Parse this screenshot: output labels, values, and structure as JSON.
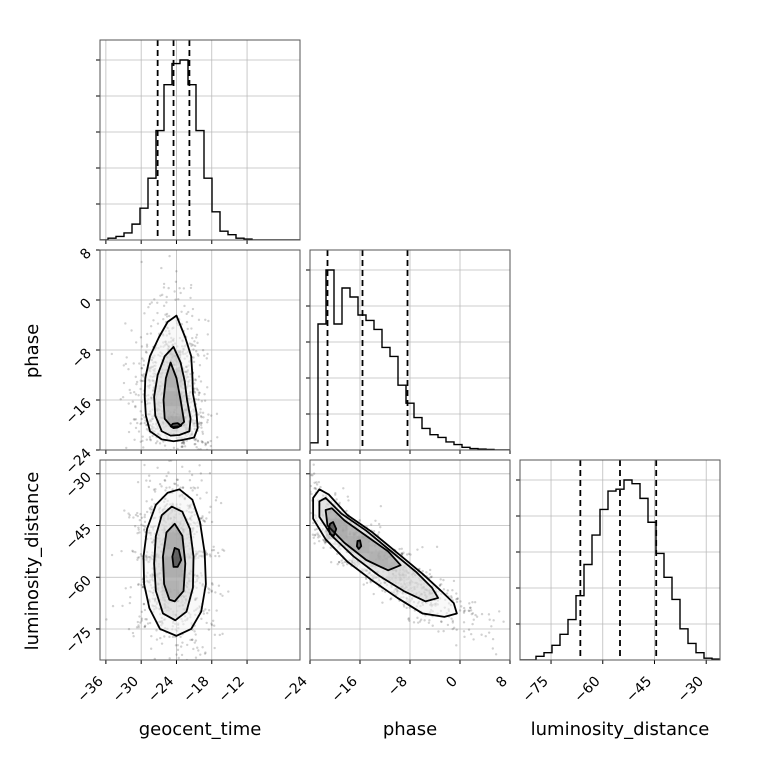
{
  "chart_data": {
    "type": "corner",
    "parameters": [
      "geocent_time",
      "phase",
      "luminosity_distance"
    ],
    "axis_labels": {
      "geocent_time": "geocent_time",
      "phase": "phase",
      "luminosity_distance": "luminosity_distance"
    },
    "ranges": {
      "geocent_time": [
        -37,
        -3
      ],
      "phase": [
        -24,
        8
      ],
      "luminosity_distance": [
        -84,
        -26
      ]
    },
    "ticks": {
      "geocent_time": [
        -36,
        -30,
        -24,
        -18,
        -12
      ],
      "phase": [
        -24,
        -16,
        -8,
        0,
        8
      ],
      "luminosity_distance": [
        -75,
        -60,
        -45,
        -30
      ]
    },
    "quantiles": {
      "geocent_time": [
        -27.2,
        -24.5,
        -21.8
      ],
      "phase": [
        -21.2,
        -15.6,
        -8.4
      ],
      "luminosity_distance": [
        -66.5,
        -55.0,
        -44.5
      ]
    },
    "histograms": {
      "geocent_time": {
        "edges_from": -37,
        "bin_width": 1.36,
        "counts": [
          0,
          0.01,
          0.02,
          0.04,
          0.09,
          0.18,
          0.35,
          0.62,
          0.88,
          1.0,
          1.02,
          0.88,
          0.62,
          0.35,
          0.16,
          0.05,
          0.03,
          0.01,
          0.005,
          0,
          0,
          0,
          0,
          0,
          0
        ]
      },
      "phase": {
        "edges_from": -24,
        "bin_width": 1.28,
        "counts": [
          0.04,
          0.7,
          1.0,
          0.7,
          0.9,
          0.85,
          0.75,
          0.72,
          0.67,
          0.57,
          0.52,
          0.36,
          0.26,
          0.18,
          0.12,
          0.085,
          0.07,
          0.045,
          0.03,
          0.015,
          0.008,
          0.005,
          0.003,
          0,
          0
        ]
      },
      "luminosity_distance": {
        "edges_from": -84,
        "bin_width": 2.32,
        "counts": [
          0,
          0,
          0.02,
          0.04,
          0.08,
          0.14,
          0.22,
          0.35,
          0.52,
          0.68,
          0.82,
          0.92,
          0.93,
          0.98,
          0.96,
          0.88,
          0.75,
          0.58,
          0.45,
          0.33,
          0.17,
          0.09,
          0.04,
          0.01,
          0.005
        ]
      }
    },
    "pairs": [
      {
        "x": "geocent_time",
        "y": "phase",
        "center": [
          -24.5,
          -16
        ],
        "contours": [
          [
            [
              -23,
              -22.4
            ],
            [
              -21,
              -22
            ],
            [
              -20.4,
              -20.5
            ],
            [
              -20.6,
              -18
            ],
            [
              -21.2,
              -15
            ],
            [
              -21.3,
              -12
            ],
            [
              -21.5,
              -9
            ],
            [
              -22.5,
              -6
            ],
            [
              -24,
              -2.5
            ],
            [
              -25.5,
              -3.5
            ],
            [
              -27,
              -6
            ],
            [
              -28.5,
              -9
            ],
            [
              -29.3,
              -12.5
            ],
            [
              -29.4,
              -15.5
            ],
            [
              -29.2,
              -18.5
            ],
            [
              -28.5,
              -21
            ],
            [
              -26.5,
              -22.3
            ],
            [
              -24.5,
              -22.6
            ]
          ],
          [
            [
              -23.5,
              -21.6
            ],
            [
              -21.8,
              -21
            ],
            [
              -21.6,
              -19
            ],
            [
              -22.2,
              -16
            ],
            [
              -22.6,
              -13
            ],
            [
              -23.3,
              -10
            ],
            [
              -24.5,
              -7.5
            ],
            [
              -26,
              -9
            ],
            [
              -27.2,
              -12
            ],
            [
              -27.8,
              -15.5
            ],
            [
              -27.6,
              -18.5
            ],
            [
              -26.5,
              -21
            ],
            [
              -25,
              -21.7
            ]
          ],
          [
            [
              -23.5,
              -20.2
            ],
            [
              -22.7,
              -19.5
            ],
            [
              -23.3,
              -16
            ],
            [
              -24,
              -12.5
            ],
            [
              -25,
              -10
            ],
            [
              -25.8,
              -12.5
            ],
            [
              -26.2,
              -16
            ],
            [
              -26,
              -19
            ],
            [
              -24.8,
              -20.3
            ]
          ],
          [
            [
              -23.8,
              -20.4
            ],
            [
              -23.2,
              -20.1
            ],
            [
              -23.8,
              -19.7
            ],
            [
              -24.6,
              -19.8
            ],
            [
              -25,
              -20.2
            ],
            [
              -24.5,
              -20.5
            ]
          ]
        ],
        "hist_cells": [
          {
            "x": -25.5,
            "y": -20.2,
            "w": 3,
            "h": 1.6,
            "v": 0.7
          },
          {
            "x": -26.2,
            "y": -17,
            "w": 3.2,
            "h": 2.4,
            "v": 0.55
          },
          {
            "x": -25.8,
            "y": -14,
            "w": 2.8,
            "h": 3,
            "v": 0.45
          },
          {
            "x": -25.2,
            "y": -10.5,
            "w": 2,
            "h": 2.5,
            "v": 0.3
          }
        ]
      },
      {
        "x": "geocent_time",
        "y": "luminosity_distance",
        "center": [
          -24.5,
          -55
        ],
        "contours": [
          [
            [
              -24,
              -77
            ],
            [
              -21.5,
              -75
            ],
            [
              -19.8,
              -70
            ],
            [
              -19,
              -62
            ],
            [
              -19.2,
              -53
            ],
            [
              -20,
              -44
            ],
            [
              -21.3,
              -37.5
            ],
            [
              -23.5,
              -34.5
            ],
            [
              -25.5,
              -35.5
            ],
            [
              -27.5,
              -39
            ],
            [
              -29,
              -46
            ],
            [
              -29.6,
              -54
            ],
            [
              -29.5,
              -62
            ],
            [
              -28.6,
              -69
            ],
            [
              -26.8,
              -75
            ]
          ],
          [
            [
              -24.2,
              -72.5
            ],
            [
              -22.3,
              -70
            ],
            [
              -21.2,
              -63
            ],
            [
              -21.1,
              -54
            ],
            [
              -21.7,
              -46
            ],
            [
              -23,
              -41
            ],
            [
              -24.8,
              -39.5
            ],
            [
              -26.5,
              -42
            ],
            [
              -27.5,
              -48
            ],
            [
              -27.8,
              -56
            ],
            [
              -27.5,
              -64
            ],
            [
              -26.3,
              -70.5
            ]
          ],
          [
            [
              -24.3,
              -67
            ],
            [
              -22.8,
              -64
            ],
            [
              -22.5,
              -56
            ],
            [
              -23,
              -48
            ],
            [
              -24.3,
              -44.5
            ],
            [
              -25.7,
              -47
            ],
            [
              -26.3,
              -54
            ],
            [
              -26.1,
              -62
            ],
            [
              -25.2,
              -66.5
            ]
          ],
          [
            [
              -23.8,
              -57
            ],
            [
              -23.2,
              -55
            ],
            [
              -23.6,
              -52
            ],
            [
              -24.3,
              -51.5
            ],
            [
              -24.7,
              -54
            ],
            [
              -24.5,
              -57
            ]
          ]
        ],
        "hist_cells": [
          {
            "x": -26.5,
            "y": -60,
            "w": 3.5,
            "h": 6,
            "v": 0.55
          },
          {
            "x": -26,
            "y": -52,
            "w": 3,
            "h": 5,
            "v": 0.5
          },
          {
            "x": -26.5,
            "y": -66,
            "w": 3,
            "h": 5,
            "v": 0.35
          }
        ]
      },
      {
        "x": "phase",
        "y": "luminosity_distance",
        "center": [
          -15,
          -55
        ],
        "contours": [
          [
            [
              -23.5,
              -37
            ],
            [
              -22.5,
              -34.5
            ],
            [
              -21,
              -36
            ],
            [
              -18,
              -42
            ],
            [
              -14,
              -47
            ],
            [
              -10,
              -53
            ],
            [
              -6,
              -59
            ],
            [
              -3,
              -64
            ],
            [
              -1,
              -67.5
            ],
            [
              -0.5,
              -70.5
            ],
            [
              -2.5,
              -71.5
            ],
            [
              -6,
              -70.5
            ],
            [
              -10,
              -66
            ],
            [
              -14,
              -61
            ],
            [
              -18,
              -55.5
            ],
            [
              -21.5,
              -49
            ],
            [
              -23.5,
              -43
            ]
          ],
          [
            [
              -22.5,
              -38
            ],
            [
              -21.5,
              -37
            ],
            [
              -19,
              -41.5
            ],
            [
              -15,
              -46.5
            ],
            [
              -11,
              -52.5
            ],
            [
              -7,
              -58.5
            ],
            [
              -4.5,
              -63
            ],
            [
              -3.5,
              -66
            ],
            [
              -5.5,
              -67
            ],
            [
              -9,
              -64
            ],
            [
              -13,
              -59.5
            ],
            [
              -17,
              -54
            ],
            [
              -20.5,
              -48
            ],
            [
              -22.5,
              -42.5
            ]
          ],
          [
            [
              -21.5,
              -40.5
            ],
            [
              -20.5,
              -40
            ],
            [
              -18.5,
              -43.5
            ],
            [
              -15,
              -48
            ],
            [
              -11.5,
              -52.5
            ],
            [
              -9.5,
              -56.5
            ],
            [
              -11.5,
              -58
            ],
            [
              -15,
              -55
            ],
            [
              -18.5,
              -50
            ],
            [
              -21.2,
              -45
            ]
          ],
          [
            [
              -20.8,
              -44.5
            ],
            [
              -20.3,
              -44
            ],
            [
              -19.8,
              -46
            ],
            [
              -20.2,
              -48
            ],
            [
              -20.8,
              -47.5
            ],
            [
              -21,
              -46
            ]
          ],
          [
            [
              -16.4,
              -49.5
            ],
            [
              -16,
              -49.3
            ],
            [
              -15.8,
              -51
            ],
            [
              -16.2,
              -51.8
            ],
            [
              -16.5,
              -51
            ]
          ]
        ],
        "hist_cells": [
          {
            "x": -21.5,
            "y": -49,
            "w": 3.5,
            "h": 6,
            "v": 0.55
          },
          {
            "x": -18,
            "y": -53,
            "w": 3.5,
            "h": 5,
            "v": 0.45
          },
          {
            "x": -14.5,
            "y": -57,
            "w": 3,
            "h": 4.5,
            "v": 0.35
          },
          {
            "x": -11.5,
            "y": -61,
            "w": 3,
            "h": 4,
            "v": 0.25
          }
        ]
      }
    ]
  }
}
